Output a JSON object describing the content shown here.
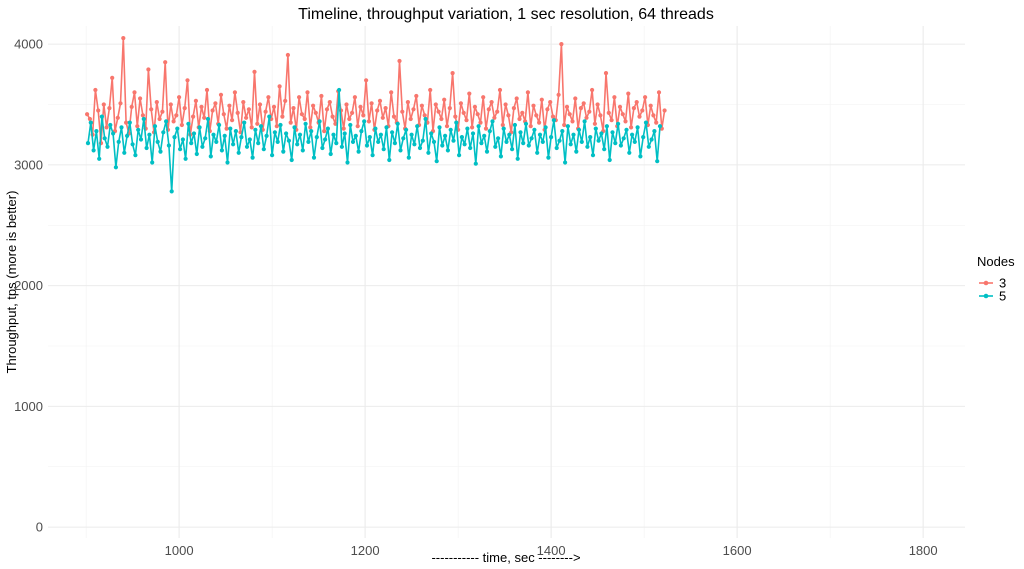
{
  "chart_data": {
    "type": "line",
    "title": "Timeline, throughput variation, 1 sec resolution, 64 threads",
    "xlabel": "----------- time, sec -------->",
    "ylabel": "Throughput, tps (more is better)",
    "xlim": [
      900,
      1800
    ],
    "ylim": [
      0,
      4100
    ],
    "x_ticks": [
      1000,
      1200,
      1400,
      1600,
      1800
    ],
    "y_ticks": [
      0,
      1000,
      2000,
      3000,
      4000
    ],
    "grid": true,
    "legend": {
      "title": "Nodes",
      "position": "right"
    },
    "series": [
      {
        "name": "3",
        "color": "#F8766D",
        "x_start": 901,
        "x_step": 3,
        "values": [
          3420,
          3380,
          3250,
          3620,
          3450,
          3180,
          3500,
          3310,
          3470,
          3720,
          3280,
          3390,
          3510,
          4050,
          3350,
          3260,
          3480,
          3600,
          3320,
          3550,
          3410,
          3300,
          3790,
          3460,
          3270,
          3520,
          3380,
          3440,
          3850,
          3290,
          3500,
          3360,
          3410,
          3560,
          3330,
          3470,
          3700,
          3250,
          3400,
          3530,
          3310,
          3480,
          3390,
          3620,
          3280,
          3450,
          3510,
          3340,
          3580,
          3420,
          3300,
          3490,
          3370,
          3600,
          3430,
          3270,
          3520,
          3390,
          3460,
          3310,
          3770,
          3340,
          3500,
          3290,
          3440,
          3560,
          3380,
          3480,
          3320,
          3650,
          3400,
          3530,
          3910,
          3350,
          3470,
          3290,
          3560,
          3420,
          3380,
          3600,
          3310,
          3490,
          3430,
          3350,
          3570,
          3280,
          3460,
          3520,
          3400,
          3340,
          3610,
          3450,
          3300,
          3500,
          3380,
          3430,
          3560,
          3320,
          3480,
          3410,
          3700,
          3360,
          3510,
          3290,
          3450,
          3530,
          3390,
          3470,
          3320,
          3600,
          3400,
          3350,
          3860,
          3440,
          3300,
          3520,
          3380,
          3460,
          3570,
          3330,
          3490,
          3410,
          3350,
          3620,
          3280,
          3500,
          3440,
          3380,
          3540,
          3320,
          3470,
          3760,
          3400,
          3290,
          3510,
          3430,
          3370,
          3590,
          3310,
          3480,
          3420,
          3350,
          3560,
          3300,
          3460,
          3520,
          3390,
          3440,
          3620,
          3330,
          3500,
          3410,
          3270,
          3470,
          3550,
          3380,
          3430,
          3360,
          3600,
          3320,
          3490,
          3410,
          3350,
          3540,
          3290,
          3460,
          3520,
          3400,
          3370,
          3580,
          4000,
          3330,
          3480,
          3420,
          3360,
          3550,
          3300,
          3470,
          3510,
          3390,
          3440,
          3620,
          3340,
          3500,
          3410,
          3280,
          3760,
          3430,
          3370,
          3560,
          3320,
          3480,
          3420,
          3360,
          3590,
          3310,
          3470,
          3520,
          3400,
          3450,
          3560,
          3330,
          3490,
          3410,
          3350,
          3600,
          3300,
          3450
        ]
      },
      {
        "name": "5",
        "color": "#00BFC4",
        "x_start": 902,
        "x_step": 3,
        "values": [
          3180,
          3350,
          3120,
          3280,
          3050,
          3400,
          3220,
          3150,
          3330,
          3260,
          2980,
          3190,
          3310,
          3100,
          3240,
          3350,
          3170,
          3080,
          3290,
          3210,
          3380,
          3140,
          3250,
          3020,
          3320,
          3190,
          3110,
          3270,
          3360,
          3160,
          2780,
          3230,
          3300,
          3130,
          3210,
          3050,
          3340,
          3180,
          3260,
          3090,
          3310,
          3150,
          3220,
          3380,
          3070,
          3250,
          3190,
          3330,
          3120,
          3240,
          3020,
          3300,
          3170,
          3280,
          3100,
          3230,
          3350,
          3150,
          3210,
          3060,
          3290,
          3180,
          3320,
          3130,
          3240,
          3400,
          3080,
          3270,
          3190,
          3330,
          3110,
          3260,
          3200,
          3040,
          3310,
          3170,
          3250,
          3120,
          3340,
          3190,
          3280,
          3060,
          3230,
          3360,
          3140,
          3210,
          3300,
          3090,
          3250,
          3180,
          3620,
          3150,
          3260,
          3020,
          3330,
          3190,
          3240,
          3110,
          3280,
          3360,
          3160,
          3230,
          3080,
          3300,
          3190,
          3250,
          3130,
          3310,
          3040,
          3270,
          3180,
          3340,
          3120,
          3220,
          3290,
          3060,
          3250,
          3170,
          3320,
          3140,
          3200,
          3380,
          3100,
          3260,
          3190,
          3030,
          3310,
          3160,
          3240,
          3120,
          3290,
          3200,
          3350,
          3080,
          3230,
          3170,
          3300,
          3140,
          3260,
          3010,
          3320,
          3180,
          3240,
          3110,
          3280,
          3360,
          3150,
          3220,
          3070,
          3300,
          3190,
          3250,
          3130,
          3330,
          3050,
          3270,
          3180,
          3340,
          3160,
          3220,
          3290,
          3100,
          3250,
          3190,
          3310,
          3060,
          3230,
          3370,
          3140,
          3200,
          3280,
          3020,
          3320,
          3170,
          3250,
          3110,
          3290,
          3190,
          3360,
          3150,
          3230,
          3080,
          3300,
          3200,
          3260,
          3130,
          3320,
          3040,
          3270,
          3180,
          3340,
          3160,
          3220,
          3290,
          3100,
          3250,
          3190,
          3310,
          3070,
          3230,
          3350,
          3150,
          3210,
          3280,
          3030,
          3320
        ]
      }
    ]
  }
}
